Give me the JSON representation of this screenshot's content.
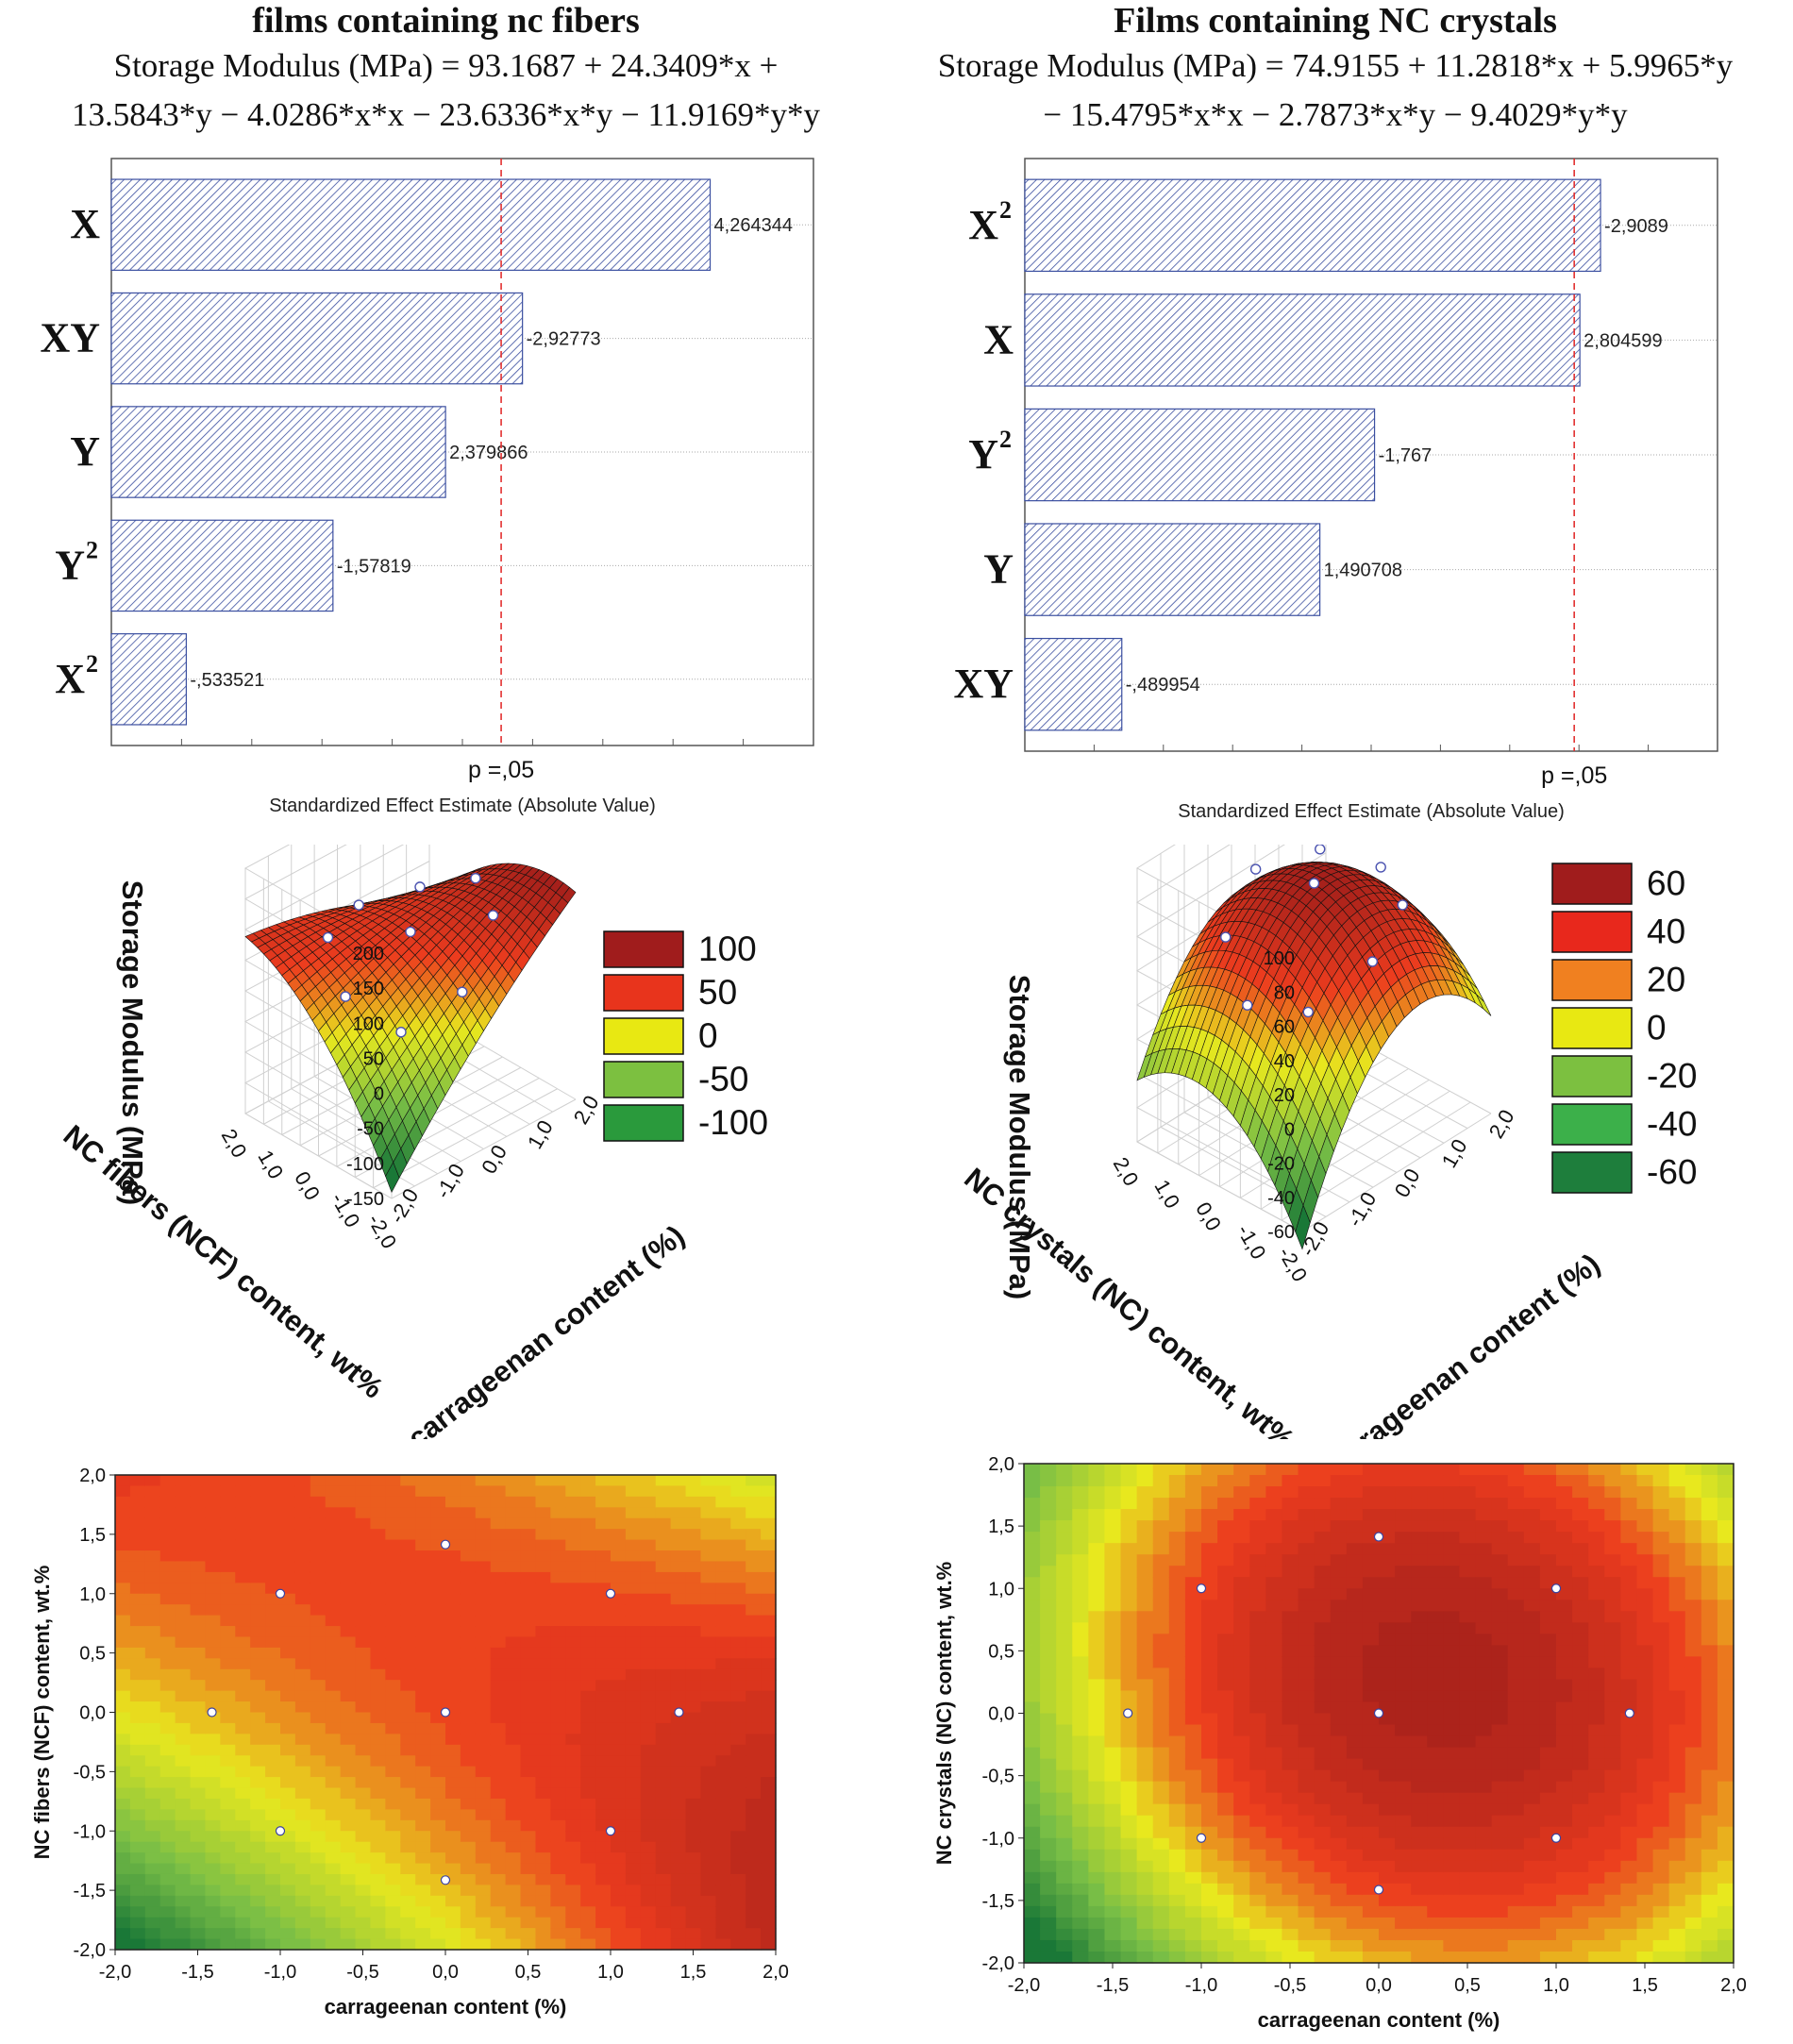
{
  "left": {
    "title": "films containing nc fibers",
    "equation_l1": "Storage Modulus (MPa) = 93.1687 + 24.3409*x +",
    "equation_l2": "13.5843*y − 4.0286*x*x − 23.6336*x*y − 11.9169*y*y"
  },
  "right": {
    "title": "Films containing NC crystals",
    "equation_l1": "Storage Modulus (MPa) = 74.9155 + 11.2818*x + 5.9965*y",
    "equation_l2": "− 15.4795*x*x − 2.7873*x*y − 9.4029*y*y"
  },
  "chart_data": [
    {
      "id": "pareto-fibers",
      "type": "bar",
      "orientation": "horizontal",
      "categories": [
        "X",
        "XY",
        "Y",
        "Y2",
        "X2"
      ],
      "values": [
        4.264344,
        2.92773,
        2.379866,
        1.57819,
        0.533521
      ],
      "labels": [
        "4,264344",
        "-2,92773",
        "2,379866",
        "-1,57819",
        "-,533521"
      ],
      "threshold": 2.776,
      "threshold_label": "p =,05",
      "xlabel": "Standardized Effect Estimate (Absolute Value)",
      "xlim": [
        0,
        5
      ],
      "bar_color": "#3b4fa0"
    },
    {
      "id": "pareto-crystals",
      "type": "bar",
      "orientation": "horizontal",
      "categories": [
        "X2",
        "X",
        "Y2",
        "Y",
        "XY"
      ],
      "values": [
        2.9089,
        2.804599,
        1.767,
        1.490708,
        0.489954
      ],
      "labels": [
        "-2,9089",
        "2,804599",
        "-1,767",
        "1,490708",
        "-,489954"
      ],
      "threshold": 2.776,
      "threshold_label": "p =,05",
      "xlabel": "Standardized Effect Estimate (Absolute Value)",
      "xlim": [
        0,
        3.5
      ],
      "bar_color": "#3b4fa0"
    },
    {
      "id": "surface-fibers",
      "type": "surface3d",
      "model": {
        "b0": 93.1687,
        "bx": 24.3409,
        "by": 13.5843,
        "bxx": -4.0286,
        "bxy": -23.6336,
        "byy": -11.9169
      },
      "zlabel": "Storage Modulus (MPa)",
      "xlabel": "carrageenan content (%)",
      "ylabel": "NC fibers (NCF) content, wt%",
      "zticks": [
        "200",
        "150",
        "100",
        "50",
        "0",
        "-50",
        "-100",
        "-150"
      ],
      "xticks": [
        "-2,0",
        "-1,0",
        "0,0",
        "1,0",
        "2,0"
      ],
      "yticks": [
        "-2,0",
        "-1,0",
        "0,0",
        "1,0",
        "2,0"
      ],
      "zlim": [
        -150,
        200
      ],
      "legend": [
        "100",
        "50",
        "0",
        "-50",
        "-100"
      ],
      "legend_colors": [
        "#a01c1c",
        "#e8341c",
        "#e8e812",
        "#7cc040",
        "#2a9a3c"
      ]
    },
    {
      "id": "surface-crystals",
      "type": "surface3d",
      "model": {
        "b0": 74.9155,
        "bx": 11.2818,
        "by": 5.9965,
        "bxx": -15.4795,
        "bxy": -2.7873,
        "byy": -9.4029
      },
      "zlabel": "Storage Modulus (MPa)",
      "xlabel": "carrageenan content (%)",
      "ylabel": "NC crystals (NC) content, wt%",
      "zticks": [
        "100",
        "80",
        "60",
        "40",
        "20",
        "0",
        "-20",
        "-40",
        "-60"
      ],
      "xticks": [
        "-2,0",
        "-1,0",
        "0,0",
        "1,0",
        "2,0"
      ],
      "yticks": [
        "-2,0",
        "-1,0",
        "0,0",
        "1,0",
        "2,0"
      ],
      "zlim": [
        -60,
        100
      ],
      "legend": [
        "60",
        "40",
        "20",
        "0",
        "-20",
        "-40",
        "-60"
      ],
      "legend_colors": [
        "#a01c1c",
        "#e8281c",
        "#f08020",
        "#e8e812",
        "#7cc040",
        "#3cb04a",
        "#1e7e3c"
      ]
    },
    {
      "id": "contour-fibers",
      "type": "heatmap",
      "subtype": "contour",
      "model": {
        "b0": 93.1687,
        "bx": 24.3409,
        "by": 13.5843,
        "bxx": -4.0286,
        "bxy": -23.6336,
        "byy": -11.9169
      },
      "xlabel": "carrageenan content (%)",
      "ylabel": "NC fibers (NCF) content, wt.%",
      "xticks": [
        "-2,0",
        "-1,5",
        "-1,0",
        "-0,5",
        "0,0",
        "0,5",
        "1,0",
        "1,5",
        "2,0"
      ],
      "yticks": [
        "2,0",
        "1,5",
        "1,0",
        "0,5",
        "0,0",
        "-0,5",
        "-1,0",
        "-1,5",
        "-2,0"
      ],
      "xlim": [
        -2,
        2
      ],
      "ylim": [
        -2,
        2
      ],
      "points": [
        [
          -1.414,
          0
        ],
        [
          1.414,
          0
        ],
        [
          0,
          1.414
        ],
        [
          0,
          -1.414
        ],
        [
          -1,
          -1
        ],
        [
          1,
          -1
        ],
        [
          -1,
          1
        ],
        [
          1,
          1
        ],
        [
          0,
          0
        ]
      ]
    },
    {
      "id": "contour-crystals",
      "type": "heatmap",
      "subtype": "contour",
      "model": {
        "b0": 74.9155,
        "bx": 11.2818,
        "by": 5.9965,
        "bxx": -15.4795,
        "bxy": -2.7873,
        "byy": -9.4029
      },
      "xlabel": "carrageenan content (%)",
      "ylabel": "NC crystals (NC) content, wt.%",
      "xticks": [
        "-2,0",
        "-1,5",
        "-1,0",
        "-0,5",
        "0,0",
        "0,5",
        "1,0",
        "1,5",
        "2,0"
      ],
      "yticks": [
        "2,0",
        "1,5",
        "1,0",
        "0,5",
        "0,0",
        "-0,5",
        "-1,0",
        "-1,5",
        "-2,0"
      ],
      "xlim": [
        -2,
        2
      ],
      "ylim": [
        -2,
        2
      ],
      "points": [
        [
          -1.414,
          0
        ],
        [
          1.414,
          0
        ],
        [
          0,
          1.414
        ],
        [
          0,
          -1.414
        ],
        [
          -1,
          -1
        ],
        [
          1,
          -1
        ],
        [
          -1,
          1
        ],
        [
          1,
          1
        ],
        [
          0,
          0
        ]
      ]
    }
  ]
}
